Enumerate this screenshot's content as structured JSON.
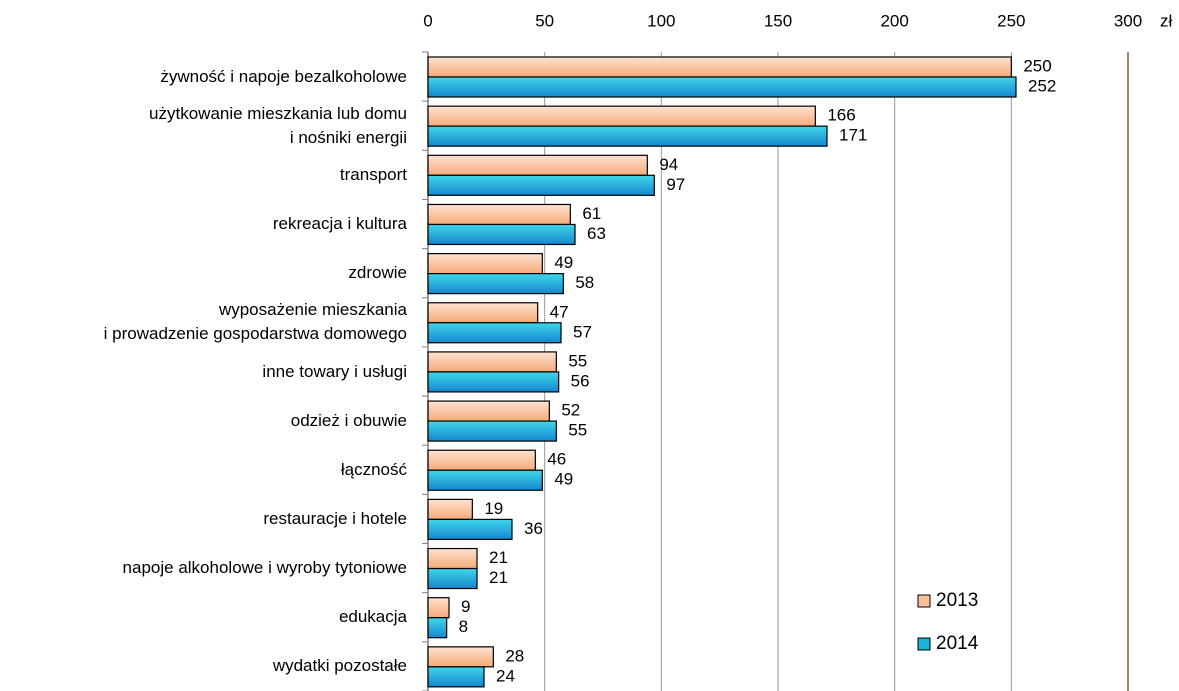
{
  "chart_data": {
    "type": "bar",
    "orientation": "horizontal",
    "unit": "zł",
    "categories": [
      "żywność i napoje bezalkoholowe",
      "użytkowanie mieszkania lub domu\ni nośniki energii",
      "transport",
      "rekreacja i kultura",
      "zdrowie",
      "wyposażenie mieszkania\ni prowadzenie gospodarstwa domowego",
      "inne towary i usługi",
      "odzież i obuwie",
      "łączność",
      "restauracje i hotele",
      "napoje alkoholowe i wyroby tytoniowe",
      "edukacja",
      "wydatki pozostałe"
    ],
    "series": [
      {
        "name": "2013",
        "color": "#f9bf98",
        "values": [
          250,
          166,
          94,
          61,
          49,
          47,
          55,
          52,
          46,
          19,
          21,
          9,
          28
        ]
      },
      {
        "name": "2014",
        "color": "#1db3d8",
        "values": [
          252,
          171,
          97,
          63,
          58,
          57,
          56,
          55,
          49,
          36,
          21,
          8,
          24
        ]
      }
    ],
    "xlim": [
      0,
      300
    ],
    "xticks": [
      0,
      50,
      100,
      150,
      200,
      250,
      300
    ],
    "grid": true,
    "legend": "lower right"
  }
}
